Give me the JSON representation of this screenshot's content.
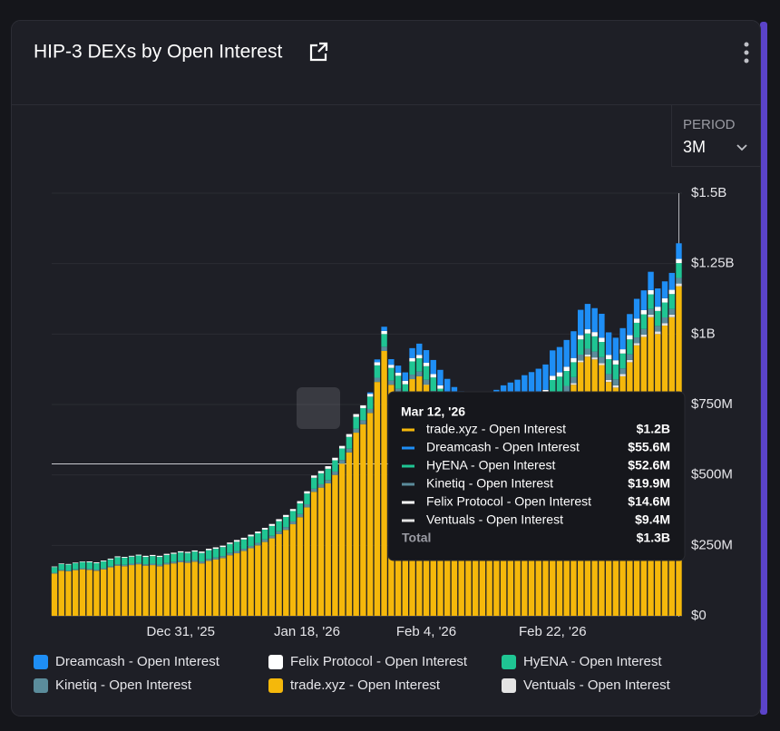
{
  "header": {
    "title": "HIP-3 DEXs by Open Interest",
    "period_label": "PERIOD",
    "period_value": "3M"
  },
  "chart_data": {
    "type": "bar",
    "stacked": true,
    "grid": true,
    "categories": [
      null,
      null,
      null,
      null,
      null,
      null,
      null,
      null,
      null,
      null,
      null,
      null,
      null,
      null,
      null,
      null,
      null,
      null,
      "Dec 31, '25",
      null,
      null,
      null,
      null,
      null,
      null,
      null,
      null,
      null,
      null,
      null,
      null,
      null,
      null,
      null,
      null,
      null,
      "Jan 18, '26",
      null,
      null,
      null,
      null,
      null,
      null,
      null,
      null,
      null,
      null,
      null,
      null,
      null,
      null,
      null,
      null,
      "Feb 4, '26",
      null,
      null,
      null,
      null,
      null,
      null,
      null,
      null,
      null,
      null,
      null,
      null,
      null,
      null,
      null,
      null,
      null,
      "Feb 22, '26",
      null,
      null,
      null,
      null,
      null,
      null,
      null,
      null,
      null,
      null,
      null,
      null,
      null,
      null,
      null,
      null,
      null,
      null
    ],
    "ylim": [
      0,
      1500000000.0
    ],
    "yticks": [
      {
        "value": 0,
        "label": "$0"
      },
      {
        "value": 250000000.0,
        "label": "$250M"
      },
      {
        "value": 500000000.0,
        "label": "$500M"
      },
      {
        "value": 750000000.0,
        "label": "$750M"
      },
      {
        "value": 1000000000.0,
        "label": "$1B"
      },
      {
        "value": 1250000000.0,
        "label": "$1.25B"
      },
      {
        "value": 1500000000.0,
        "label": "$1.5B"
      }
    ],
    "series": [
      {
        "name": "Dreamcash - Open Interest",
        "color": "#1e8ef5",
        "values": [
          0,
          0,
          0,
          0,
          0,
          0,
          0,
          0,
          0,
          0,
          0,
          0,
          0,
          0,
          0,
          0,
          0,
          0,
          0,
          0,
          0,
          0,
          0,
          0,
          0,
          0,
          0,
          0,
          0,
          0,
          0,
          0,
          0,
          0,
          0,
          0,
          0,
          0,
          0,
          0,
          0,
          0,
          0,
          0,
          0,
          5000000.0,
          10000000.0,
          15000000.0,
          20000000.0,
          25000000.0,
          30000000.0,
          35000000.0,
          40000000.0,
          45000000.0,
          50000000.0,
          55000000.0,
          60000000.0,
          60000000.0,
          65000000.0,
          65000000.0,
          70000000.0,
          70000000.0,
          75000000.0,
          75000000.0,
          80000000.0,
          80000000.0,
          80000000.0,
          85000000.0,
          85000000.0,
          85000000.0,
          90000000.0,
          90000000.0,
          90000000.0,
          95000000.0,
          95000000.0,
          90000000.0,
          90000000.0,
          85000000.0,
          85000000.0,
          80000000.0,
          80000000.0,
          75000000.0,
          75000000.0,
          70000000.0,
          70000000.0,
          65000000.0,
          65000000.0,
          60000000.0,
          60000000.0,
          55600000.0
        ]
      },
      {
        "name": "Felix Protocol - Open Interest",
        "color": "#ffffff",
        "values": [
          2000000.0,
          2000000.0,
          2000000.0,
          2000000.0,
          2000000.0,
          3000000.0,
          3000000.0,
          3000000.0,
          3000000.0,
          3000000.0,
          3000000.0,
          3000000.0,
          3000000.0,
          4000000.0,
          4000000.0,
          4000000.0,
          4000000.0,
          4000000.0,
          4000000.0,
          4000000.0,
          4000000.0,
          5000000.0,
          5000000.0,
          5000000.0,
          5000000.0,
          5000000.0,
          6000000.0,
          6000000.0,
          6000000.0,
          6000000.0,
          6000000.0,
          7000000.0,
          7000000.0,
          7000000.0,
          7000000.0,
          8000000.0,
          8000000.0,
          8000000.0,
          8000000.0,
          9000000.0,
          9000000.0,
          9000000.0,
          10000000.0,
          10000000.0,
          10000000.0,
          10000000.0,
          11000000.0,
          11000000.0,
          11000000.0,
          11000000.0,
          12000000.0,
          12000000.0,
          12000000.0,
          12000000.0,
          12000000.0,
          12000000.0,
          13000000.0,
          13000000.0,
          13000000.0,
          13000000.0,
          13000000.0,
          13000000.0,
          14000000.0,
          14000000.0,
          14000000.0,
          14000000.0,
          14000000.0,
          14000000.0,
          14000000.0,
          15000000.0,
          15000000.0,
          15000000.0,
          15000000.0,
          15000000.0,
          15000000.0,
          15000000.0,
          15000000.0,
          15000000.0,
          15000000.0,
          15000000.0,
          15000000.0,
          15000000.0,
          15000000.0,
          15000000.0,
          15000000.0,
          15000000.0,
          15000000.0,
          15000000.0,
          15000000.0,
          14600000.0
        ]
      },
      {
        "name": "HyENA - Open Interest",
        "color": "#1fc593",
        "values": [
          20000000.0,
          21000000.0,
          21000000.0,
          22000000.0,
          22000000.0,
          23000000.0,
          23000000.0,
          24000000.0,
          24000000.0,
          25000000.0,
          25000000.0,
          25000000.0,
          26000000.0,
          26000000.0,
          27000000.0,
          27000000.0,
          28000000.0,
          28000000.0,
          29000000.0,
          29000000.0,
          30000000.0,
          30000000.0,
          31000000.0,
          31000000.0,
          32000000.0,
          32000000.0,
          33000000.0,
          33000000.0,
          34000000.0,
          34000000.0,
          35000000.0,
          35000000.0,
          36000000.0,
          36000000.0,
          37000000.0,
          38000000.0,
          38000000.0,
          39000000.0,
          39000000.0,
          40000000.0,
          40000000.0,
          41000000.0,
          42000000.0,
          42000000.0,
          43000000.0,
          44000000.0,
          44000000.0,
          45000000.0,
          45000000.0,
          46000000.0,
          46000000.0,
          47000000.0,
          47000000.0,
          48000000.0,
          48000000.0,
          48000000.0,
          49000000.0,
          49000000.0,
          49000000.0,
          50000000.0,
          50000000.0,
          50000000.0,
          50000000.0,
          51000000.0,
          51000000.0,
          51000000.0,
          51000000.0,
          52000000.0,
          52000000.0,
          52000000.0,
          52000000.0,
          52000000.0,
          53000000.0,
          53000000.0,
          53000000.0,
          54000000.0,
          54000000.0,
          54000000.0,
          54000000.0,
          53000000.0,
          53000000.0,
          53000000.0,
          53000000.0,
          52000000.0,
          52000000.0,
          52000000.0,
          53000000.0,
          53000000.0,
          53000000.0,
          52600000.0
        ]
      },
      {
        "name": "Kinetiq - Open Interest",
        "color": "#5b8c9b",
        "values": [
          3000000.0,
          3000000.0,
          3000000.0,
          3000000.0,
          4000000.0,
          4000000.0,
          4000000.0,
          4000000.0,
          4000000.0,
          5000000.0,
          5000000.0,
          5000000.0,
          5000000.0,
          5000000.0,
          5000000.0,
          6000000.0,
          6000000.0,
          6000000.0,
          6000000.0,
          6000000.0,
          6000000.0,
          7000000.0,
          7000000.0,
          7000000.0,
          7000000.0,
          8000000.0,
          8000000.0,
          8000000.0,
          8000000.0,
          9000000.0,
          9000000.0,
          9000000.0,
          10000000.0,
          10000000.0,
          10000000.0,
          11000000.0,
          11000000.0,
          11000000.0,
          12000000.0,
          12000000.0,
          12000000.0,
          13000000.0,
          13000000.0,
          14000000.0,
          14000000.0,
          14000000.0,
          15000000.0,
          15000000.0,
          15000000.0,
          16000000.0,
          16000000.0,
          16000000.0,
          17000000.0,
          17000000.0,
          17000000.0,
          17000000.0,
          17000000.0,
          18000000.0,
          18000000.0,
          18000000.0,
          18000000.0,
          18000000.0,
          18000000.0,
          19000000.0,
          19000000.0,
          19000000.0,
          19000000.0,
          19000000.0,
          19000000.0,
          20000000.0,
          20000000.0,
          20000000.0,
          20000000.0,
          20000000.0,
          21000000.0,
          21000000.0,
          21000000.0,
          21000000.0,
          21000000.0,
          21000000.0,
          21000000.0,
          20000000.0,
          20000000.0,
          20000000.0,
          20000000.0,
          20000000.0,
          20000000.0,
          20000000.0,
          20000000.0,
          19900000.0
        ]
      },
      {
        "name": "trade.xyz - Open Interest",
        "color": "#f5b80b",
        "values": [
          150000000.0,
          160000000.0,
          158000000.0,
          162000000.0,
          165000000.0,
          163000000.0,
          160000000.0,
          165000000.0,
          172000000.0,
          178000000.0,
          176000000.0,
          180000000.0,
          183000000.0,
          178000000.0,
          180000000.0,
          176000000.0,
          182000000.0,
          186000000.0,
          190000000.0,
          188000000.0,
          192000000.0,
          186000000.0,
          195000000.0,
          200000000.0,
          205000000.0,
          215000000.0,
          222000000.0,
          230000000.0,
          240000000.0,
          250000000.0,
          262000000.0,
          275000000.0,
          290000000.0,
          305000000.0,
          325000000.0,
          350000000.0,
          385000000.0,
          440000000.0,
          455000000.0,
          470000000.0,
          500000000.0,
          540000000.0,
          580000000.0,
          650000000.0,
          680000000.0,
          720000000.0,
          830000000.0,
          940000000.0,
          820000000.0,
          790000000.0,
          760000000.0,
          840000000.0,
          850000000.0,
          820000000.0,
          780000000.0,
          740000000.0,
          700000000.0,
          670000000.0,
          650000000.0,
          640000000.0,
          630000000.0,
          620000000.0,
          630000000.0,
          640000000.0,
          650000000.0,
          660000000.0,
          670000000.0,
          680000000.0,
          690000000.0,
          700000000.0,
          710000000.0,
          760000000.0,
          770000000.0,
          790000000.0,
          820000000.0,
          900000000.0,
          920000000.0,
          910000000.0,
          890000000.0,
          830000000.0,
          810000000.0,
          850000000.0,
          900000000.0,
          960000000.0,
          990000000.0,
          1060000000.0,
          1000000000.0,
          1030000000.0,
          1060000000.0,
          1170000000.0
        ]
      },
      {
        "name": "Ventuals - Open Interest",
        "color": "#e4e4e4",
        "values": [
          0,
          0,
          0,
          0,
          0,
          0,
          0,
          0,
          0,
          0,
          0,
          0,
          0,
          0,
          0,
          0,
          0,
          0,
          0,
          0,
          0,
          0,
          0,
          0,
          0,
          0,
          0,
          0,
          0,
          0,
          0,
          0,
          0,
          0,
          0,
          0,
          0,
          0,
          0,
          0,
          0,
          0,
          0,
          0,
          0,
          0,
          0,
          0,
          0,
          0,
          0,
          0,
          0,
          1000000.0,
          1000000.0,
          1000000.0,
          2000000.0,
          2000000.0,
          2000000.0,
          2000000.0,
          3000000.0,
          3000000.0,
          3000000.0,
          3000000.0,
          4000000.0,
          4000000.0,
          4000000.0,
          4000000.0,
          5000000.0,
          5000000.0,
          5000000.0,
          5000000.0,
          6000000.0,
          6000000.0,
          6000000.0,
          6000000.0,
          7000000.0,
          7000000.0,
          7000000.0,
          7000000.0,
          8000000.0,
          8000000.0,
          8000000.0,
          8000000.0,
          8000000.0,
          9000000.0,
          9000000.0,
          9000000.0,
          9000000.0,
          9400000.0
        ]
      }
    ],
    "tooltip": {
      "title": "Mar 12, '26",
      "rows": [
        {
          "name": "trade.xyz - Open Interest",
          "value": "$1.2B"
        },
        {
          "name": "Dreamcash - Open Interest",
          "value": "$55.6M"
        },
        {
          "name": "HyENA - Open Interest",
          "value": "$52.6M"
        },
        {
          "name": "Kinetiq - Open Interest",
          "value": "$19.9M"
        },
        {
          "name": "Felix Protocol - Open Interest",
          "value": "$14.6M"
        },
        {
          "name": "Ventuals - Open Interest",
          "value": "$9.4M"
        }
      ],
      "total": {
        "name": "Total",
        "value": "$1.3B"
      }
    }
  }
}
